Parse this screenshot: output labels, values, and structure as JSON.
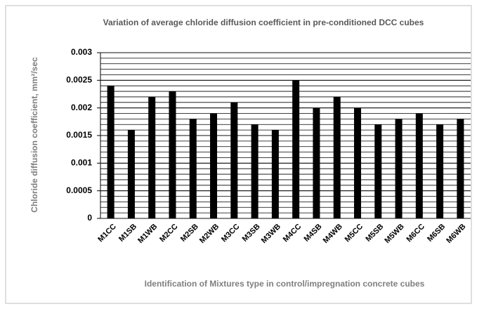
{
  "chart_data": {
    "type": "bar",
    "title": "Variation of average chloride diffusion coefficient in pre-conditioned DCC cubes",
    "y_label": "Chloride diffusion coefficient, mm²/sec",
    "x_label": "Identification of Mixtures type in control/impregnation concrete cubes",
    "categories": [
      "M1CC",
      "M1SB",
      "M1WB",
      "M2CC",
      "M2SB",
      "M2WB",
      "M3CC",
      "M3SB",
      "M3WB",
      "M4CC",
      "M4SB",
      "M4WB",
      "M5CC",
      "M5SB",
      "M5WB",
      "M6CC",
      "M6SB",
      "M6WB"
    ],
    "values": [
      0.0024,
      0.0016,
      0.0022,
      0.0023,
      0.0018,
      0.0019,
      0.0021,
      0.0017,
      0.0016,
      0.0025,
      0.002,
      0.0022,
      0.002,
      0.0017,
      0.0018,
      0.0019,
      0.0017,
      0.0018
    ],
    "color": "#000000",
    "ylim": [
      0,
      0.003
    ],
    "yticks": [
      0,
      0.0005,
      0.001,
      0.0015,
      0.002,
      0.0025,
      0.003
    ],
    "grid": true,
    "minor_grid": 0.0001
  }
}
